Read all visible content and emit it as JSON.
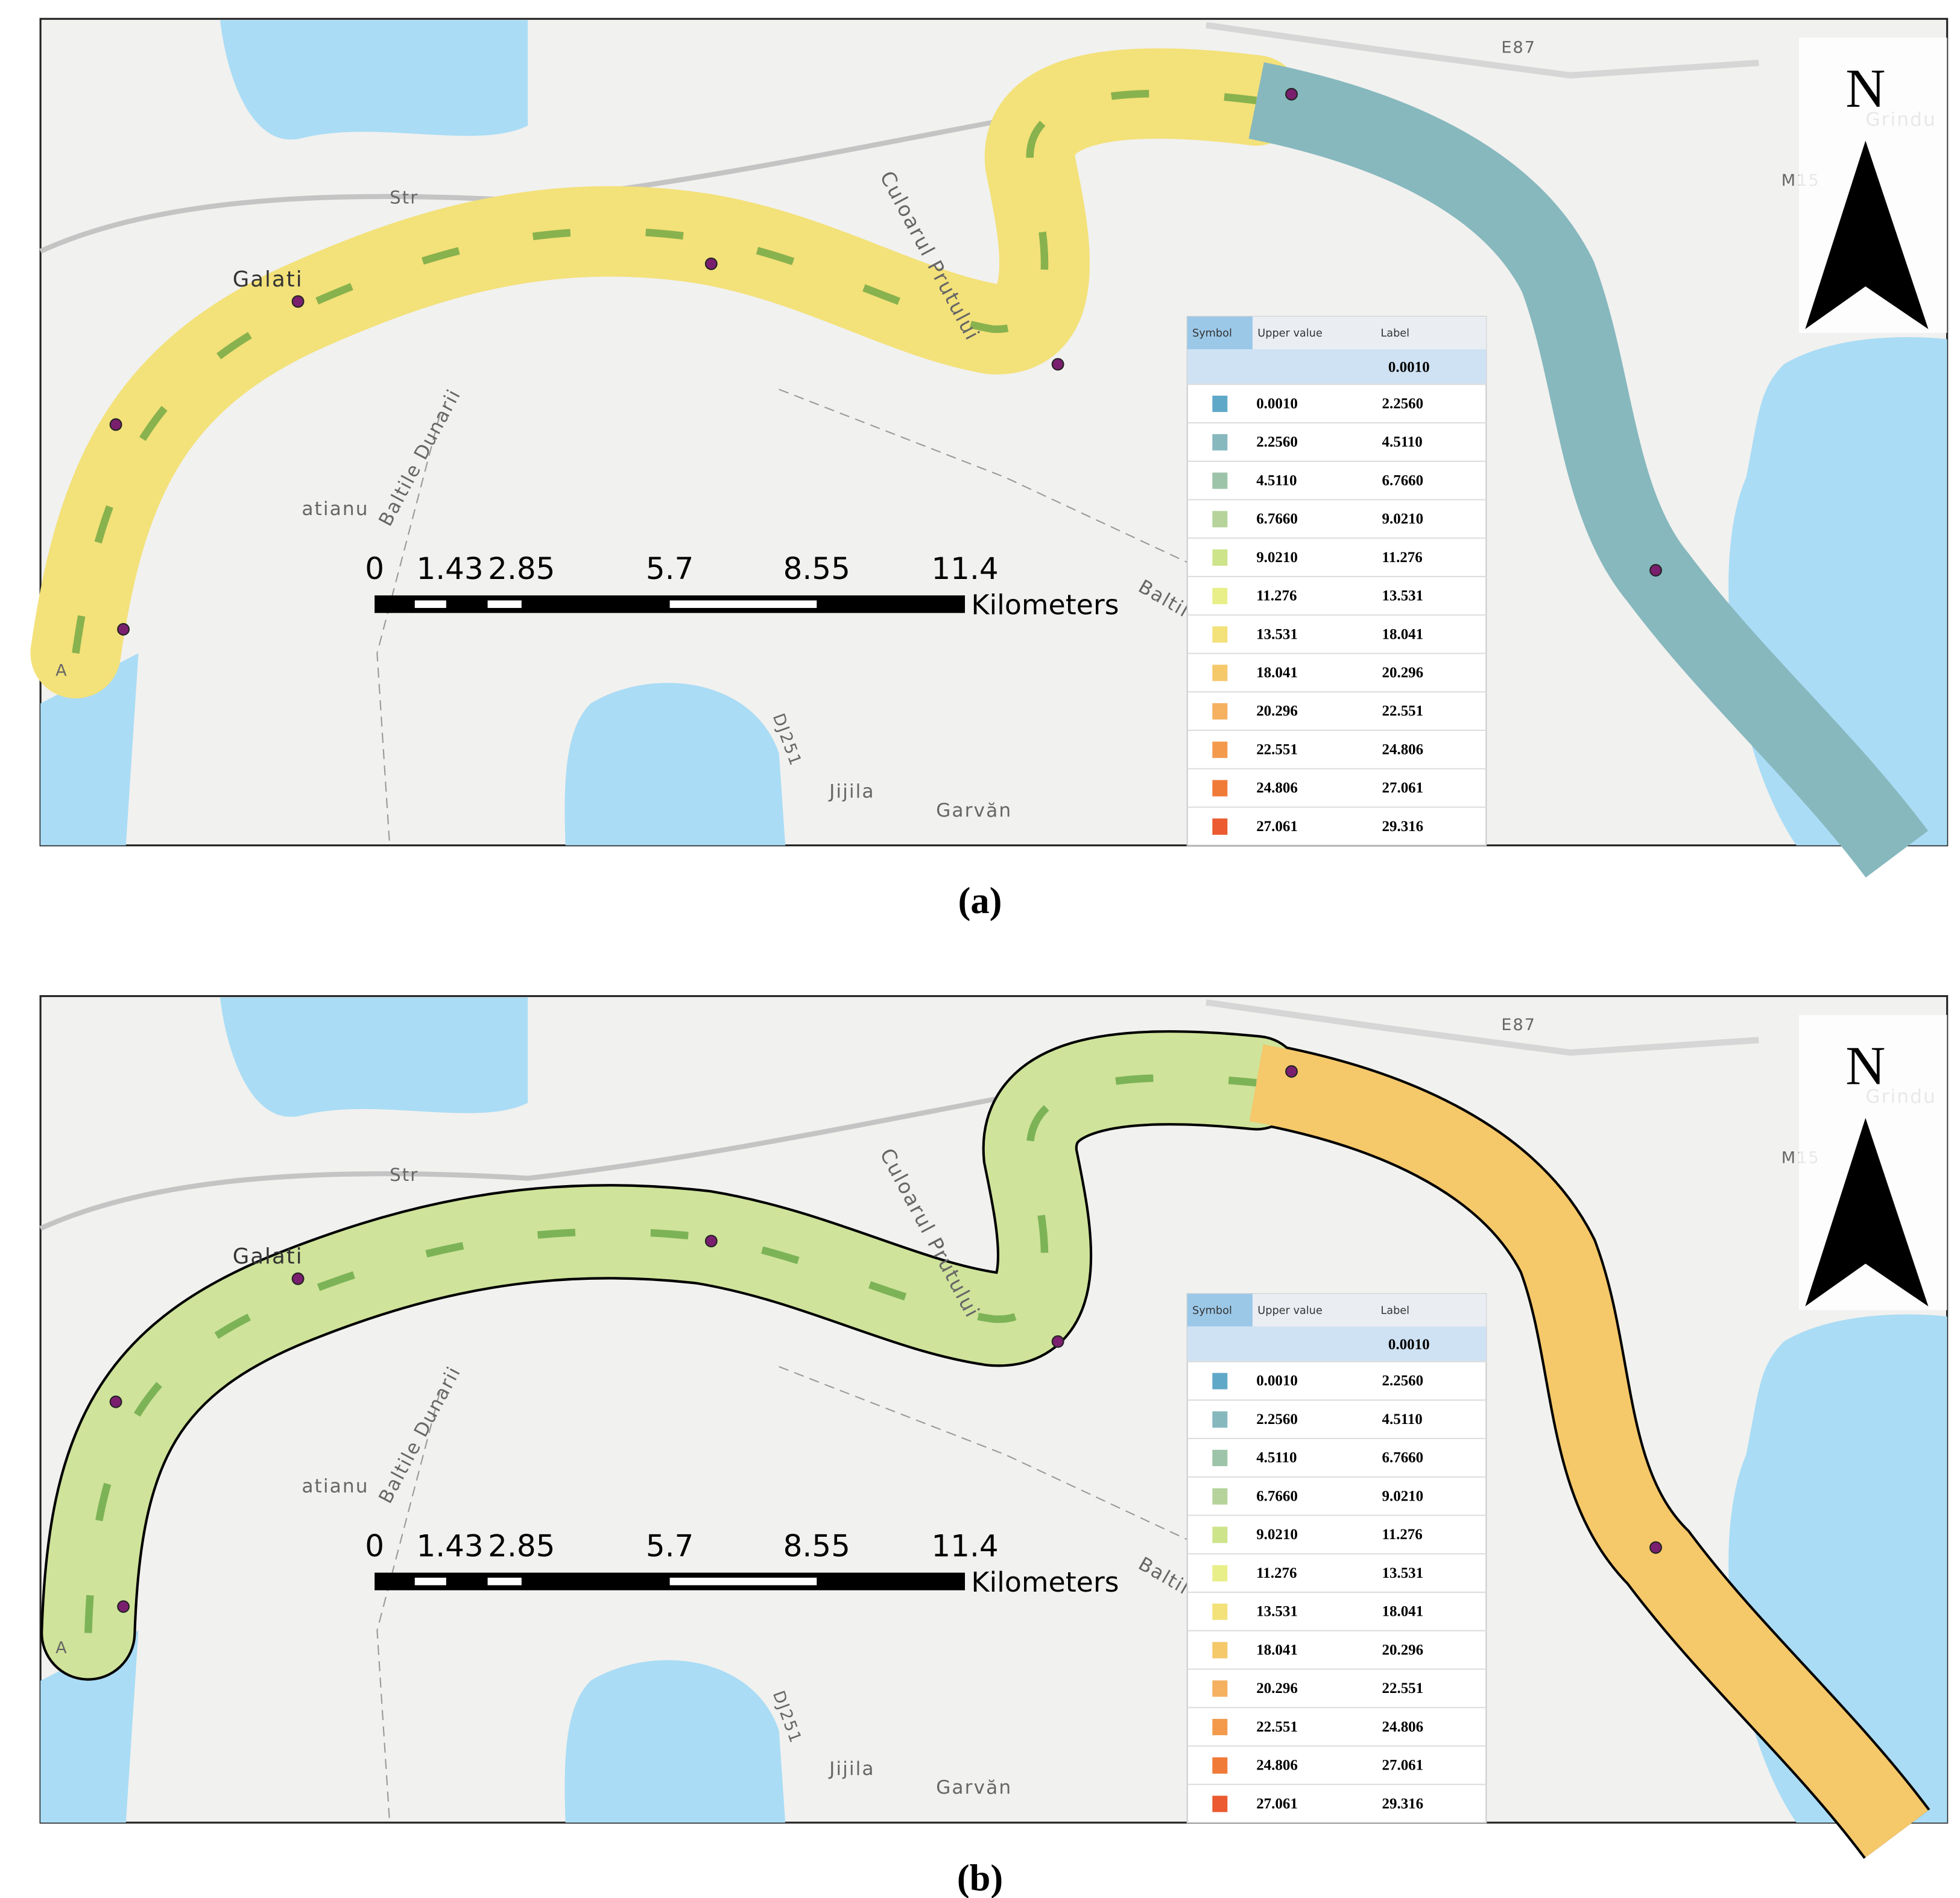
{
  "panels": [
    {
      "caption": "(a)",
      "map_labels": [
        "Str",
        "Galati",
        "Culoarul Prutului",
        "E87",
        "M15",
        "Grindu",
        "Baltile Dunarii",
        "atianu",
        "Baltile Dun",
        "DJ251",
        "Jijila",
        "Garvăn",
        "A"
      ],
      "north": "N",
      "scale_bar": {
        "ticks": [
          "0",
          "1.43",
          "2.85",
          "5.7",
          "8.55",
          "11.4"
        ],
        "unit": "Kilometers"
      },
      "legend": {
        "headers": [
          "Symbol",
          "Upper value",
          "Label"
        ],
        "first_label": "0.0010",
        "rows": [
          [
            "0.0010",
            "2.2560"
          ],
          [
            "2.2560",
            "4.5110"
          ],
          [
            "4.5110",
            "6.7660"
          ],
          [
            "6.7660",
            "9.0210"
          ],
          [
            "9.0210",
            "11.276"
          ],
          [
            "11.276",
            "13.531"
          ],
          [
            "13.531",
            "18.041"
          ],
          [
            "18.041",
            "20.296"
          ],
          [
            "20.296",
            "22.551"
          ],
          [
            "22.551",
            "24.806"
          ],
          [
            "24.806",
            "27.061"
          ],
          [
            "27.061",
            "29.316"
          ]
        ],
        "colors": [
          "#5fa8c8",
          "#86b8be",
          "#9dc4a8",
          "#b5d39a",
          "#cde48a",
          "#e9ef88",
          "#f3e17a",
          "#f5c86a",
          "#f5b060",
          "#f39a4c",
          "#f07a38",
          "#eb5a30"
        ]
      }
    },
    {
      "caption": "(b)",
      "map_labels": [
        "Str",
        "Galati",
        "Culoarul Prutului",
        "E87",
        "M15",
        "Grindu",
        "Baltile Dunarii",
        "atianu",
        "Baltile Dun",
        "DJ251",
        "Jijila",
        "Garvăn",
        "A"
      ],
      "north": "N",
      "scale_bar": {
        "ticks": [
          "0",
          "1.43",
          "2.85",
          "5.7",
          "8.55",
          "11.4"
        ],
        "unit": "Kilometers"
      },
      "legend": {
        "headers": [
          "Symbol",
          "Upper value",
          "Label"
        ],
        "first_label": "0.0010",
        "rows": [
          [
            "0.0010",
            "2.2560"
          ],
          [
            "2.2560",
            "4.5110"
          ],
          [
            "4.5110",
            "6.7660"
          ],
          [
            "6.7660",
            "9.0210"
          ],
          [
            "9.0210",
            "11.276"
          ],
          [
            "11.276",
            "13.531"
          ],
          [
            "13.531",
            "18.041"
          ],
          [
            "18.041",
            "20.296"
          ],
          [
            "20.296",
            "22.551"
          ],
          [
            "22.551",
            "24.806"
          ],
          [
            "24.806",
            "27.061"
          ],
          [
            "27.061",
            "29.316"
          ]
        ],
        "colors": [
          "#5fa8c8",
          "#86b8be",
          "#9dc4a8",
          "#b5d39a",
          "#cde48a",
          "#e9ef88",
          "#f3e17a",
          "#f5c86a",
          "#f5b060",
          "#f39a4c",
          "#f07a38",
          "#eb5a30"
        ]
      }
    }
  ]
}
